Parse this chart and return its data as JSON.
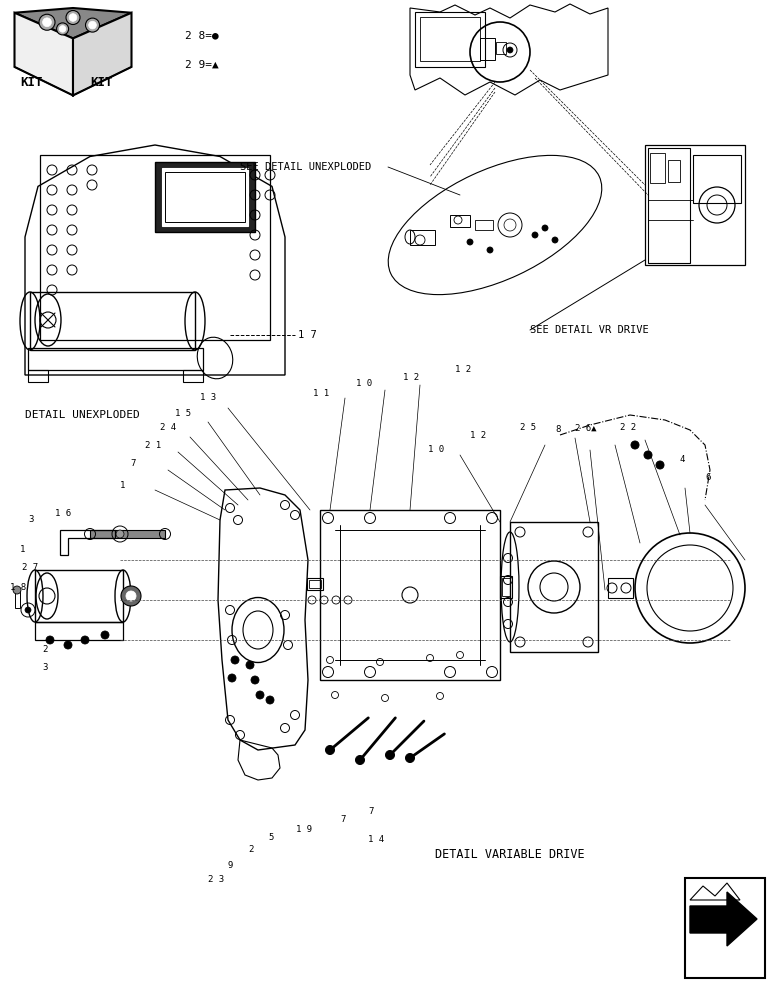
{
  "bg_color": "#ffffff",
  "line_color": "#000000",
  "kit_legend_28": "2 8=●",
  "kit_legend_29": "2 9=▲",
  "label_see_unexploded": "SEE DETAIL UNEXPLODED",
  "label_see_vr_drive": "SEE DETAIL VR DRIVE",
  "label_detail_unexploded": "DETAIL UNEXPLODED",
  "label_detail_variable_drive": "DETAIL VARIABLE DRIVE"
}
